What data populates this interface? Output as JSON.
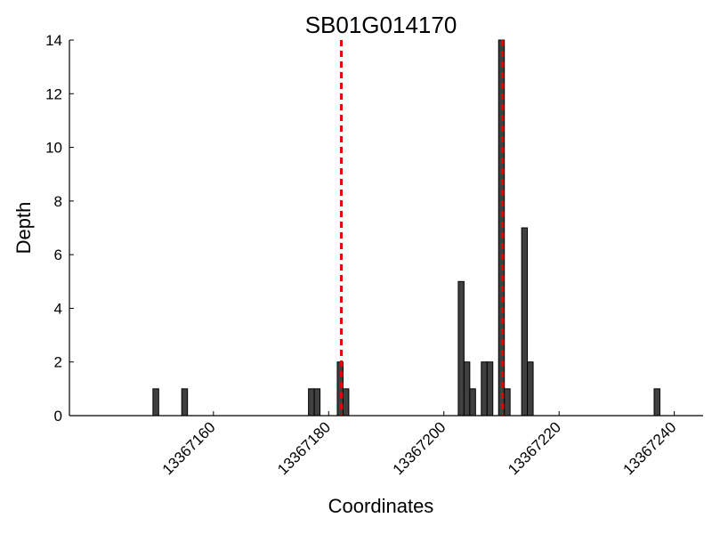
{
  "chart_data": {
    "type": "bar",
    "title": "SB01G014170",
    "xlabel": "Coordinates",
    "ylabel": "Depth",
    "xlim": [
      13367135,
      13367245
    ],
    "ylim": [
      0,
      14
    ],
    "xticks": [
      13367160,
      13367180,
      13367200,
      13367220,
      13367240
    ],
    "xtick_labels": [
      "13367160",
      "13367180",
      "13367200",
      "13367220",
      "13367240"
    ],
    "yticks": [
      0,
      2,
      4,
      6,
      8,
      10,
      12,
      14
    ],
    "ytick_labels": [
      "0",
      "2",
      "4",
      "6",
      "8",
      "10",
      "12",
      "14"
    ],
    "bar_color": "#404040",
    "bar_edge_color": "#000000",
    "bar_width": 1,
    "x": [
      13367150,
      13367155,
      13367177,
      13367178,
      13367182,
      13367183,
      13367203,
      13367204,
      13367205,
      13367207,
      13367208,
      13367210,
      13367211,
      13367214,
      13367215,
      13367237
    ],
    "values": [
      1,
      1,
      1,
      1,
      2,
      1,
      5,
      2,
      1,
      2,
      2,
      14,
      1,
      7,
      2,
      1
    ],
    "reference_lines": [
      {
        "x": 13367182.2,
        "color": "#ee0000",
        "style": "dashed"
      },
      {
        "x": 13367210.2,
        "color": "#ee0000",
        "style": "dashed"
      }
    ],
    "grid": false
  }
}
